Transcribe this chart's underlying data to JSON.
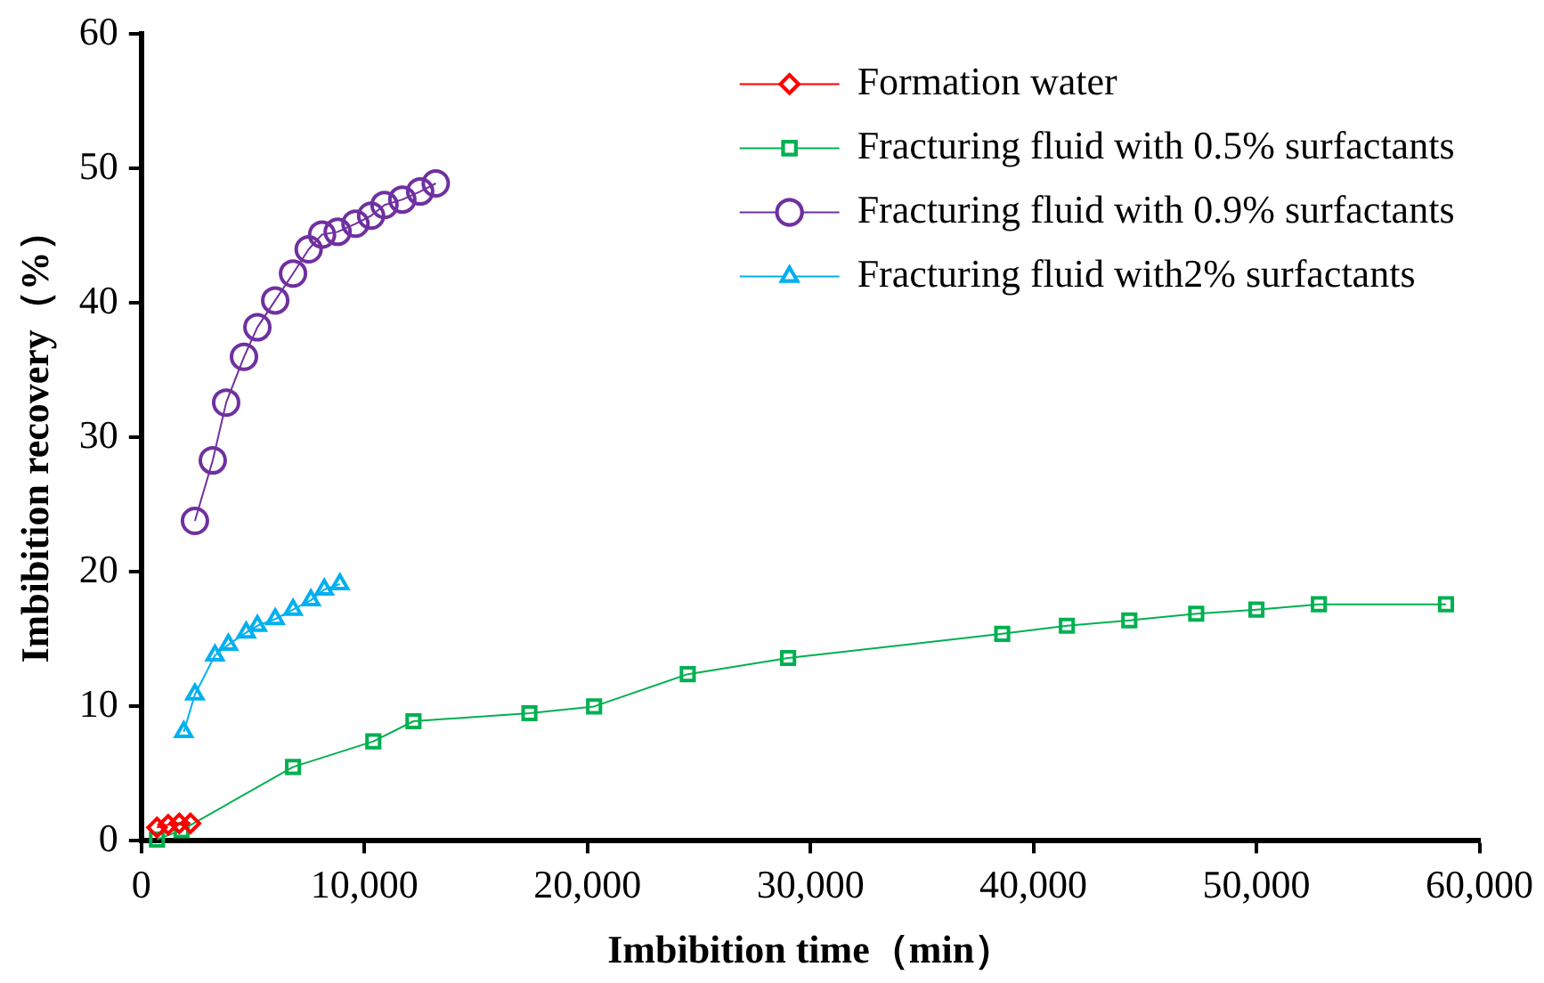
{
  "chart_data": {
    "type": "line",
    "xlabel": "Imbibition time（min）",
    "ylabel": "Imbibition recovery（%）",
    "xlim": [
      0,
      60000
    ],
    "xticks": [
      0,
      {
        "value": 10000,
        "label": "10,000"
      },
      {
        "value": 20000,
        "label": "20,000"
      },
      {
        "value": 30000,
        "label": "30,000"
      },
      {
        "value": 40000,
        "label": "40,000"
      },
      {
        "value": 50000,
        "label": "50,000"
      },
      {
        "value": 60000,
        "label": "60,000"
      }
    ],
    "ylim": [
      0,
      60
    ],
    "yticks": [
      0,
      10,
      20,
      30,
      40,
      50,
      60
    ],
    "grid": false,
    "legend": "top right",
    "line_style": "solid",
    "series": [
      {
        "name": "Formation water",
        "color": "#ff0000",
        "marker": "diamond",
        "x": [
          700,
          1200,
          1700,
          2200
        ],
        "values": [
          1.0,
          1.2,
          1.3,
          1.3
        ]
      },
      {
        "name": "Fracturing fluid with 0.5% surfactants",
        "color": "#00b050",
        "marker": "square",
        "x": [
          700,
          1800,
          6800,
          10400,
          12200,
          17400,
          20300,
          24500,
          29000,
          38600,
          41500,
          44300,
          47300,
          50000,
          52800,
          58500
        ],
        "values": [
          0.1,
          0.8,
          5.5,
          7.4,
          8.9,
          9.5,
          10.0,
          12.4,
          13.6,
          15.4,
          16.0,
          16.4,
          16.9,
          17.2,
          17.6,
          17.6
        ]
      },
      {
        "name": "Fracturing fluid with 0.9% surfactants",
        "color": "#7030a0",
        "marker": "circle",
        "x": [
          2400,
          3200,
          3800,
          4600,
          5200,
          6000,
          6800,
          7500,
          8100,
          8800,
          9600,
          10300,
          10900,
          11700,
          12500,
          13200
        ],
        "values": [
          23.8,
          28.3,
          32.6,
          36.0,
          38.2,
          40.2,
          42.2,
          44.0,
          45.1,
          45.3,
          45.9,
          46.5,
          47.3,
          47.7,
          48.3,
          48.9
        ]
      },
      {
        "name": "Fracturing fluid with2% surfactants",
        "color": "#00b0f0",
        "marker": "triangle",
        "x": [
          1900,
          2400,
          3300,
          3900,
          4700,
          5200,
          6000,
          6800,
          7600,
          8200,
          8900
        ],
        "values": [
          8.1,
          10.9,
          13.8,
          14.6,
          15.5,
          16.0,
          16.5,
          17.2,
          17.9,
          18.7,
          19.1
        ]
      }
    ]
  }
}
